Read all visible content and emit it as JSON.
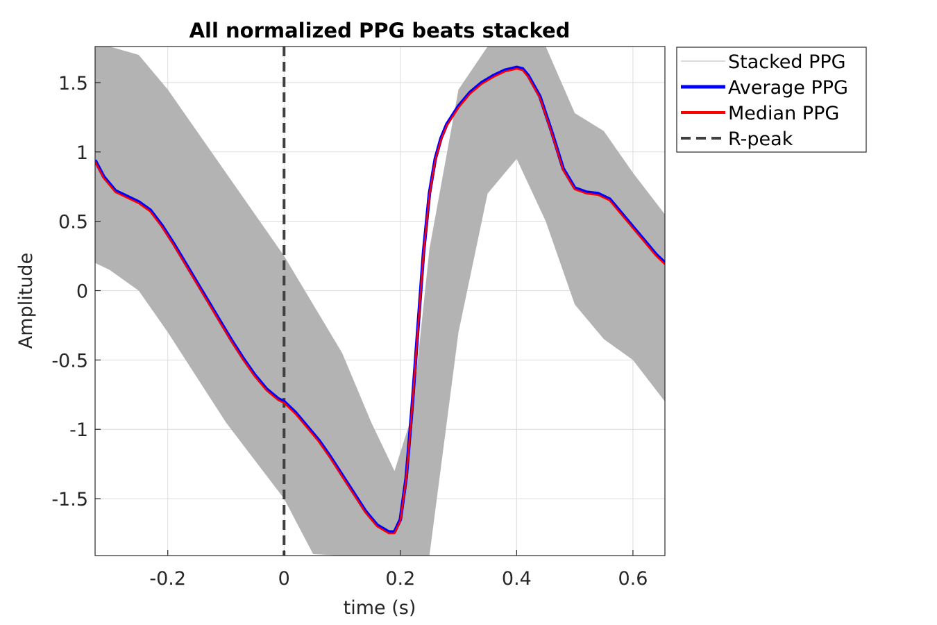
{
  "chart_data": {
    "type": "line",
    "title": "All normalized PPG beats stacked",
    "xlabel": "time (s)",
    "ylabel": "Amplitude",
    "xlim": [
      -0.325,
      0.655
    ],
    "ylim": [
      -1.91,
      1.76
    ],
    "xticks": [
      -0.2,
      0,
      0.2,
      0.4,
      0.6
    ],
    "xtick_labels": [
      "-0.2",
      "0",
      "0.2",
      "0.4",
      "0.6"
    ],
    "yticks": [
      -1.5,
      -1,
      -0.5,
      0,
      0.5,
      1,
      1.5
    ],
    "ytick_labels": [
      "-1.5",
      "-1",
      "-0.5",
      "0",
      "0.5",
      "1",
      "1.5"
    ],
    "grid": true,
    "legend_position": "outside top-right",
    "band": {
      "name": "Stacked PPG",
      "color": "#b3b3b3",
      "x": [
        -0.325,
        -0.3,
        -0.25,
        -0.2,
        -0.1,
        0,
        0.05,
        0.1,
        0.15,
        0.19,
        0.22,
        0.25,
        0.3,
        0.35,
        0.4,
        0.45,
        0.5,
        0.55,
        0.6,
        0.655
      ],
      "upper": [
        1.76,
        1.76,
        1.7,
        1.45,
        0.85,
        0.25,
        -0.1,
        -0.45,
        -0.95,
        -1.3,
        -0.9,
        0.3,
        1.45,
        1.76,
        1.76,
        1.76,
        1.28,
        1.15,
        0.85,
        0.55
      ],
      "lower": [
        0.2,
        0.15,
        0.0,
        -0.3,
        -0.95,
        -1.5,
        -1.9,
        -1.91,
        -1.91,
        -1.91,
        -1.91,
        -1.91,
        -0.3,
        0.7,
        0.95,
        0.5,
        -0.1,
        -0.35,
        -0.5,
        -0.8
      ]
    },
    "series": [
      {
        "name": "Average PPG",
        "color": "#0000ff",
        "x": [
          -0.325,
          -0.31,
          -0.29,
          -0.27,
          -0.25,
          -0.23,
          -0.21,
          -0.19,
          -0.17,
          -0.15,
          -0.13,
          -0.11,
          -0.09,
          -0.07,
          -0.05,
          -0.03,
          -0.01,
          0,
          0.02,
          0.04,
          0.06,
          0.08,
          0.1,
          0.12,
          0.14,
          0.16,
          0.18,
          0.19,
          0.2,
          0.21,
          0.22,
          0.23,
          0.24,
          0.25,
          0.26,
          0.27,
          0.28,
          0.3,
          0.32,
          0.34,
          0.36,
          0.38,
          0.4,
          0.41,
          0.42,
          0.44,
          0.46,
          0.48,
          0.5,
          0.52,
          0.54,
          0.56,
          0.58,
          0.6,
          0.62,
          0.64,
          0.655
        ],
        "y": [
          0.94,
          0.82,
          0.72,
          0.68,
          0.64,
          0.58,
          0.47,
          0.34,
          0.2,
          0.06,
          -0.08,
          -0.22,
          -0.36,
          -0.49,
          -0.61,
          -0.71,
          -0.78,
          -0.8,
          -0.88,
          -0.98,
          -1.08,
          -1.2,
          -1.33,
          -1.46,
          -1.59,
          -1.69,
          -1.74,
          -1.74,
          -1.65,
          -1.35,
          -0.85,
          -0.28,
          0.28,
          0.7,
          0.95,
          1.1,
          1.2,
          1.33,
          1.43,
          1.5,
          1.55,
          1.59,
          1.61,
          1.6,
          1.55,
          1.4,
          1.15,
          0.88,
          0.74,
          0.71,
          0.7,
          0.66,
          0.56,
          0.46,
          0.36,
          0.26,
          0.2
        ]
      },
      {
        "name": "Median PPG",
        "color": "#ff0000",
        "x": [
          -0.325,
          -0.31,
          -0.29,
          -0.27,
          -0.25,
          -0.23,
          -0.21,
          -0.19,
          -0.17,
          -0.15,
          -0.13,
          -0.11,
          -0.09,
          -0.07,
          -0.05,
          -0.03,
          -0.01,
          0,
          0.02,
          0.04,
          0.06,
          0.08,
          0.1,
          0.12,
          0.14,
          0.16,
          0.18,
          0.19,
          0.2,
          0.21,
          0.22,
          0.23,
          0.24,
          0.25,
          0.26,
          0.27,
          0.28,
          0.3,
          0.32,
          0.34,
          0.36,
          0.38,
          0.4,
          0.41,
          0.42,
          0.44,
          0.46,
          0.48,
          0.5,
          0.52,
          0.54,
          0.56,
          0.58,
          0.6,
          0.62,
          0.64,
          0.655
        ],
        "y": [
          0.93,
          0.81,
          0.71,
          0.67,
          0.63,
          0.57,
          0.46,
          0.33,
          0.19,
          0.05,
          -0.09,
          -0.23,
          -0.37,
          -0.5,
          -0.62,
          -0.72,
          -0.79,
          -0.81,
          -0.89,
          -0.99,
          -1.09,
          -1.21,
          -1.34,
          -1.47,
          -1.6,
          -1.7,
          -1.75,
          -1.75,
          -1.66,
          -1.36,
          -0.86,
          -0.29,
          0.27,
          0.69,
          0.94,
          1.09,
          1.19,
          1.32,
          1.42,
          1.49,
          1.54,
          1.58,
          1.6,
          1.59,
          1.54,
          1.39,
          1.14,
          0.87,
          0.73,
          0.7,
          0.69,
          0.65,
          0.55,
          0.45,
          0.35,
          0.25,
          0.19
        ]
      }
    ],
    "rpeak": {
      "name": "R-peak",
      "x": 0,
      "color": "#404040"
    },
    "legend": [
      {
        "label": "Stacked PPG",
        "color": "#b3b3b3",
        "style": "thin"
      },
      {
        "label": "Average PPG",
        "color": "#0000ff",
        "style": "thick"
      },
      {
        "label": "Median PPG",
        "color": "#ff0000",
        "style": "medium"
      },
      {
        "label": "R-peak",
        "color": "#404040",
        "style": "dashed"
      }
    ]
  }
}
